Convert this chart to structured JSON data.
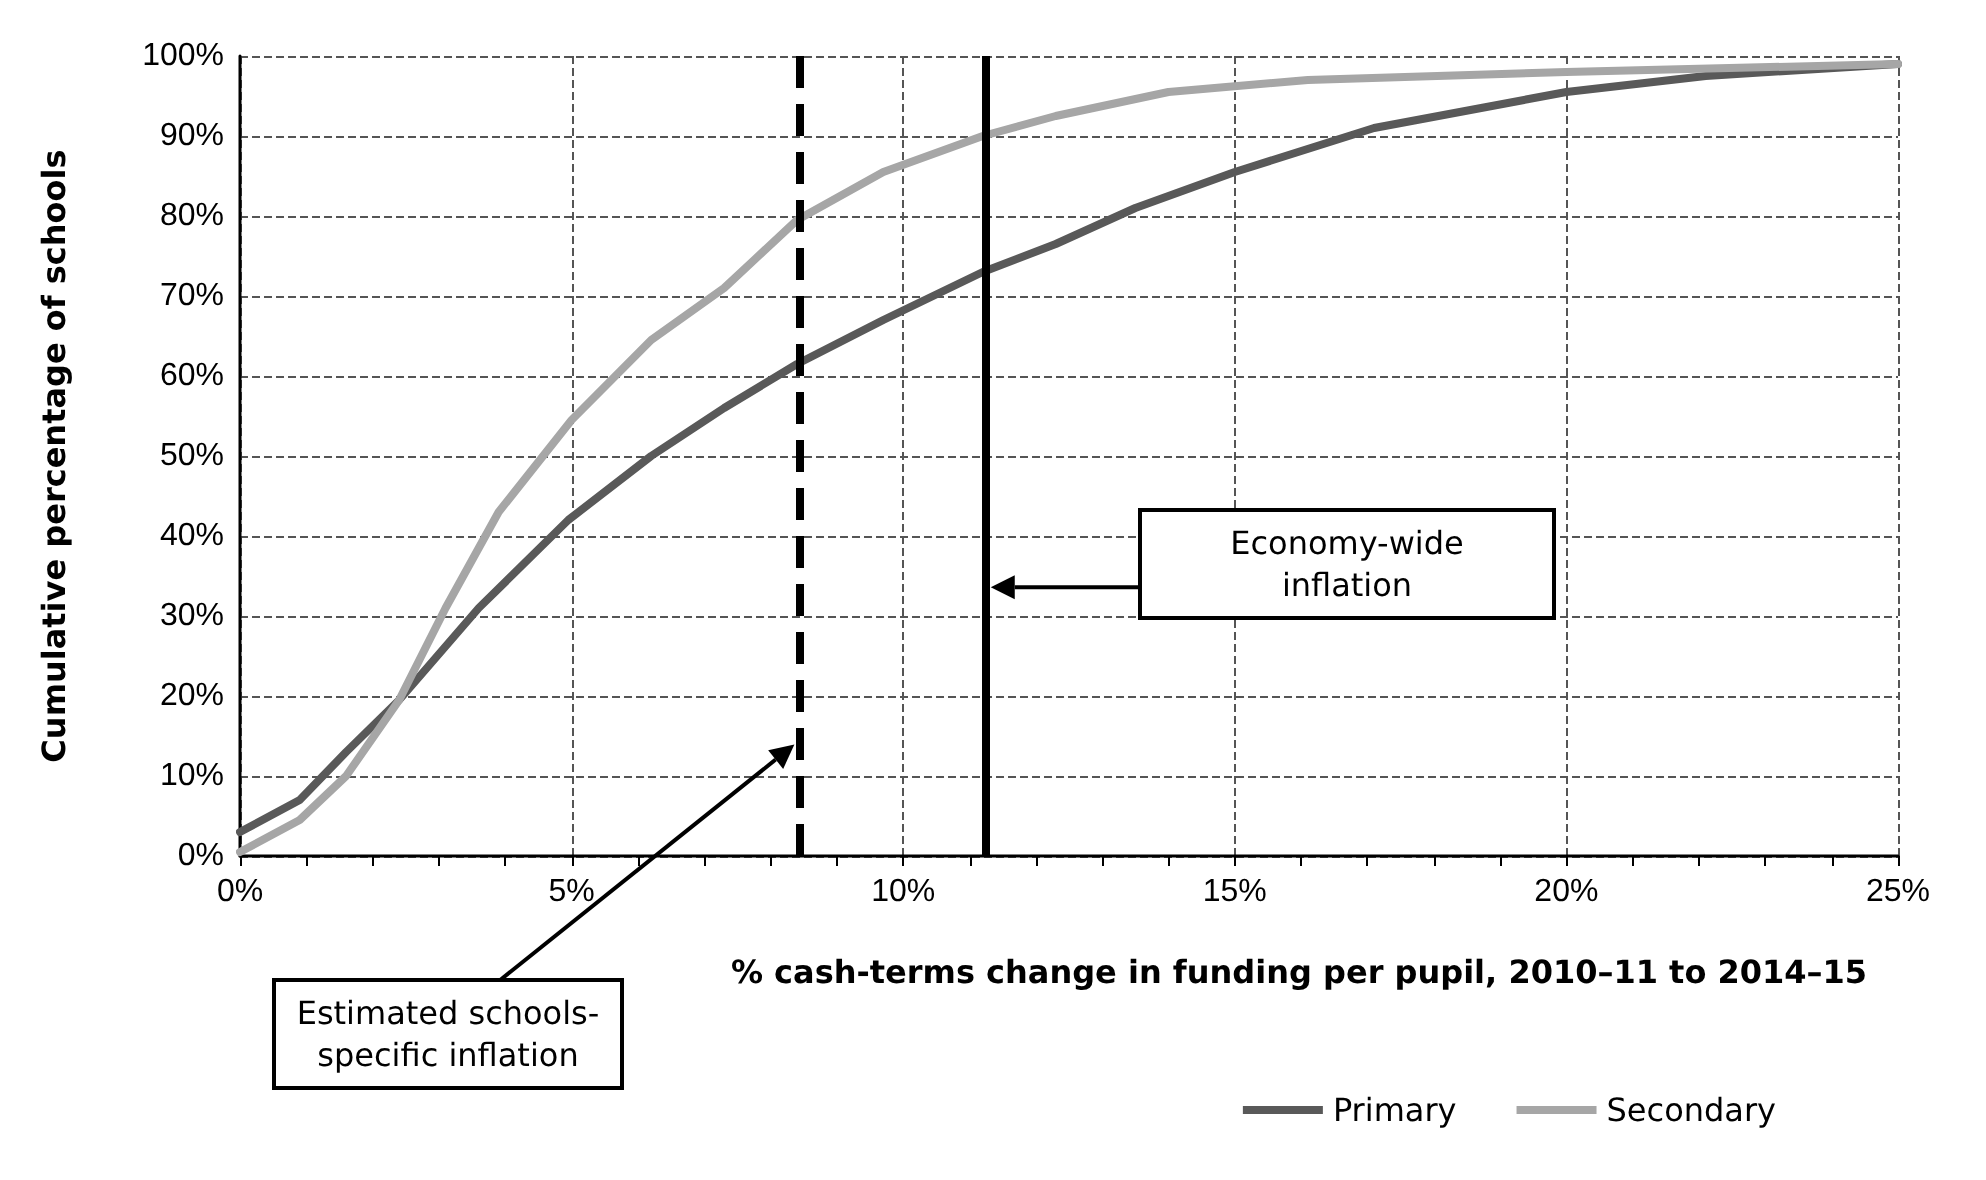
{
  "chart_data": {
    "type": "line",
    "xlabel": "% cash-terms change in funding per pupil, 2010–11 to 2014–15",
    "ylabel": "Cumulative percentage of schools",
    "xlim": [
      0,
      25
    ],
    "xticks": [
      {
        "value": 0,
        "label": "0%"
      },
      {
        "value": 5,
        "label": "5%"
      },
      {
        "value": 10,
        "label": "10%"
      },
      {
        "value": 15,
        "label": "15%"
      },
      {
        "value": 20,
        "label": "20%"
      },
      {
        "value": 25,
        "label": "25%"
      }
    ],
    "ylim": [
      0,
      100
    ],
    "yticks": [
      {
        "value": 0,
        "label": "0%"
      },
      {
        "value": 10,
        "label": "10%"
      },
      {
        "value": 20,
        "label": "20%"
      },
      {
        "value": 30,
        "label": "30%"
      },
      {
        "value": 40,
        "label": "40%"
      },
      {
        "value": 50,
        "label": "50%"
      },
      {
        "value": 60,
        "label": "60%"
      },
      {
        "value": 70,
        "label": "70%"
      },
      {
        "value": 80,
        "label": "80%"
      },
      {
        "value": 90,
        "label": "90%"
      },
      {
        "value": 100,
        "label": "100%"
      }
    ],
    "grid": true,
    "legend": "bottom right",
    "marker": "none",
    "line_style": "solid",
    "series": [
      {
        "name": "Primary",
        "color": "#595959",
        "x": [
          0,
          0.9,
          1.6,
          2.4,
          3.6,
          4.95,
          6.2,
          7.3,
          8.4,
          9.7,
          11.2,
          12.3,
          13.5,
          15,
          17.1,
          20,
          22.1,
          25
        ],
        "values": [
          3,
          7,
          13,
          19.5,
          31,
          42,
          50,
          56,
          61.5,
          67,
          73,
          76.5,
          81,
          85.5,
          91,
          95.5,
          97.5,
          99
        ]
      },
      {
        "name": "Secondary",
        "color": "#a6a6a6",
        "x": [
          0,
          0.9,
          1.6,
          2.4,
          3.1,
          3.9,
          5,
          6.2,
          7.3,
          8.4,
          9.7,
          11.2,
          12.3,
          14,
          16.1,
          20,
          25
        ],
        "values": [
          0.5,
          4.5,
          10,
          19.5,
          31,
          43,
          54.5,
          64.5,
          71,
          79.5,
          85.5,
          90,
          92.5,
          95.5,
          97,
          98,
          99
        ]
      }
    ],
    "ref_lines": [
      {
        "axis": "x",
        "value": 8.43,
        "line_style": "dashed",
        "color": "#000000"
      },
      {
        "axis": "x",
        "value": 11.23,
        "line_style": "solid",
        "color": "#000000"
      }
    ],
    "annotations": [
      "Estimated schools-specific inflation",
      "Economy-wide inflation"
    ]
  }
}
